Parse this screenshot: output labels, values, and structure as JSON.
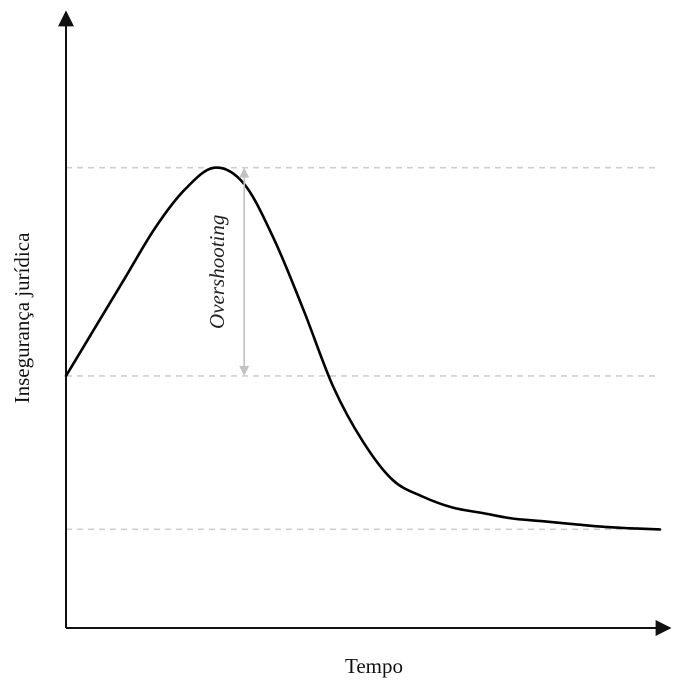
{
  "chart_data": {
    "type": "line",
    "title": "",
    "xlabel": "Tempo",
    "ylabel": "Insegurança jurídica",
    "xlim": [
      0,
      10
    ],
    "ylim": [
      0,
      10
    ],
    "axis_ticks": false,
    "grid": false,
    "series": [
      {
        "x": [
          0,
          0.5,
          1,
          1.5,
          2,
          2.5,
          3,
          3.5,
          4,
          4.5,
          5,
          5.5,
          6,
          6.5,
          7,
          7.5,
          8,
          8.5,
          9,
          9.5,
          10
        ],
        "y": [
          4.6,
          5.5,
          6.4,
          7.3,
          8.0,
          8.4,
          8.1,
          7.1,
          5.8,
          4.4,
          3.4,
          2.7,
          2.4,
          2.2,
          2.1,
          2.0,
          1.95,
          1.9,
          1.85,
          1.82,
          1.8
        ]
      }
    ],
    "reference_lines": [
      {
        "y": 8.4,
        "style": "dashed"
      },
      {
        "y": 4.6,
        "style": "dashed"
      },
      {
        "y": 1.8,
        "style": "dashed"
      }
    ],
    "annotations": [
      {
        "text": "Overshooting",
        "x": 3,
        "y_from": 8.4,
        "y_to": 4.6,
        "style": "double-arrow"
      }
    ],
    "colors": {
      "curve": "#000000",
      "axis": "#111111",
      "reference": "#cfcfcf",
      "annotation_arrow": "#c2c2c2"
    }
  }
}
